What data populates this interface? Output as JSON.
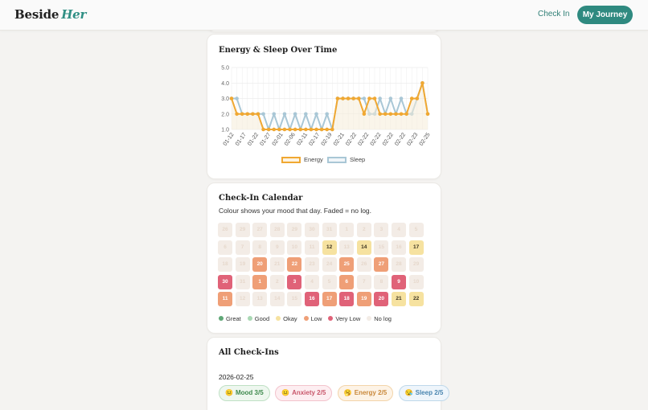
{
  "header": {
    "logo_main": "Beside",
    "logo_accent": "Her",
    "nav_checkin": "Check In",
    "nav_journey": "My Journey"
  },
  "chart_card": {
    "title": "Energy & Sleep Over Time"
  },
  "chart_data": {
    "type": "line",
    "title": "Energy & Sleep Over Time",
    "xlabel": "",
    "ylabel": "",
    "ylim": [
      1.0,
      5.0
    ],
    "yticks": [
      "5.0",
      "4.0",
      "3.0",
      "2.0",
      "1.0"
    ],
    "xticks": [
      "01-12",
      "01-17",
      "01-22",
      "01-27",
      "02-01",
      "02-06",
      "02-11",
      "02-17",
      "02-19",
      "02-21",
      "02-22",
      "02-22",
      "02-22",
      "02-22",
      "02-22",
      "02-23",
      "02-25"
    ],
    "grid": true,
    "legend_position": "bottom",
    "series": [
      {
        "name": "Energy",
        "color": "#f0a832",
        "values": [
          3,
          2,
          2,
          2,
          2,
          2,
          1,
          1,
          1,
          1,
          1,
          1,
          1,
          1,
          1,
          1,
          1,
          1,
          1,
          1,
          3,
          3,
          3,
          3,
          3,
          2,
          3,
          3,
          2,
          2,
          2,
          2,
          2,
          2,
          3,
          3,
          4,
          2
        ]
      },
      {
        "name": "Sleep",
        "color": "#a9c7d6",
        "values": [
          3,
          3,
          2,
          2,
          2,
          2,
          2,
          1,
          2,
          1,
          2,
          1,
          2,
          1,
          2,
          1,
          2,
          1,
          2,
          1,
          3,
          3,
          3,
          3,
          3,
          3,
          2,
          2,
          3,
          2,
          3,
          2,
          3,
          2,
          2,
          3,
          4,
          2
        ]
      }
    ]
  },
  "calendar_card": {
    "title": "Check-In Calendar",
    "subtitle": "Colour shows your mood that day. Faded = no log.",
    "colors": {
      "great": "#5fa777",
      "good": "#a9d8b4",
      "okay": "#f6e2a0",
      "low": "#ef9f77",
      "very_low": "#e06278",
      "no_log": "#f3ece6"
    },
    "rows": [
      [
        {
          "d": "26",
          "m": "none",
          "f": 1
        },
        {
          "d": "29",
          "m": "none",
          "f": 1
        },
        {
          "d": "27",
          "m": "none",
          "f": 1
        },
        {
          "d": "28",
          "m": "none",
          "f": 1
        },
        {
          "d": "29",
          "m": "none",
          "f": 1
        },
        {
          "d": "30",
          "m": "none",
          "f": 1
        },
        {
          "d": "31",
          "m": "none",
          "f": 1
        },
        {
          "d": "1",
          "m": "none",
          "f": 1
        },
        {
          "d": "2",
          "m": "none",
          "f": 1
        },
        {
          "d": "3",
          "m": "none",
          "f": 1
        },
        {
          "d": "4",
          "m": "none",
          "f": 1
        },
        {
          "d": "5",
          "m": "none",
          "f": 1
        }
      ],
      [
        {
          "d": "6",
          "m": "none",
          "f": 1
        },
        {
          "d": "7",
          "m": "none",
          "f": 1
        },
        {
          "d": "8",
          "m": "none",
          "f": 1
        },
        {
          "d": "9",
          "m": "none",
          "f": 1
        },
        {
          "d": "10",
          "m": "none",
          "f": 1
        },
        {
          "d": "11",
          "m": "none",
          "f": 1
        },
        {
          "d": "12",
          "m": "okay",
          "f": 0
        },
        {
          "d": "13",
          "m": "none",
          "f": 1
        },
        {
          "d": "14",
          "m": "okay",
          "f": 0
        },
        {
          "d": "15",
          "m": "none",
          "f": 1
        },
        {
          "d": "16",
          "m": "none",
          "f": 1
        },
        {
          "d": "17",
          "m": "okay",
          "f": 0
        }
      ],
      [
        {
          "d": "18",
          "m": "none",
          "f": 1
        },
        {
          "d": "19",
          "m": "none",
          "f": 1
        },
        {
          "d": "20",
          "m": "low",
          "f": 0
        },
        {
          "d": "21",
          "m": "none",
          "f": 1
        },
        {
          "d": "22",
          "m": "low",
          "f": 0
        },
        {
          "d": "23",
          "m": "none",
          "f": 1
        },
        {
          "d": "24",
          "m": "none",
          "f": 1
        },
        {
          "d": "25",
          "m": "low",
          "f": 0
        },
        {
          "d": "26",
          "m": "none",
          "f": 1
        },
        {
          "d": "27",
          "m": "low",
          "f": 0
        },
        {
          "d": "28",
          "m": "none",
          "f": 1
        },
        {
          "d": "29",
          "m": "none",
          "f": 1
        }
      ],
      [
        {
          "d": "30",
          "m": "very_low",
          "f": 0
        },
        {
          "d": "31",
          "m": "none",
          "f": 1
        },
        {
          "d": "1",
          "m": "low",
          "f": 0
        },
        {
          "d": "2",
          "m": "none",
          "f": 1
        },
        {
          "d": "3",
          "m": "very_low",
          "f": 0
        },
        {
          "d": "4",
          "m": "none",
          "f": 1
        },
        {
          "d": "5",
          "m": "none",
          "f": 1
        },
        {
          "d": "6",
          "m": "low",
          "f": 0
        },
        {
          "d": "7",
          "m": "none",
          "f": 1
        },
        {
          "d": "8",
          "m": "none",
          "f": 1
        },
        {
          "d": "9",
          "m": "very_low",
          "f": 0
        },
        {
          "d": "10",
          "m": "none",
          "f": 1
        }
      ],
      [
        {
          "d": "11",
          "m": "low",
          "f": 0
        },
        {
          "d": "12",
          "m": "none",
          "f": 1
        },
        {
          "d": "13",
          "m": "none",
          "f": 1
        },
        {
          "d": "14",
          "m": "none",
          "f": 1
        },
        {
          "d": "15",
          "m": "none",
          "f": 1
        },
        {
          "d": "16",
          "m": "very_low",
          "f": 0
        },
        {
          "d": "17",
          "m": "low",
          "f": 0
        },
        {
          "d": "18",
          "m": "very_low",
          "f": 0
        },
        {
          "d": "19",
          "m": "low",
          "f": 0
        },
        {
          "d": "20",
          "m": "very_low",
          "f": 0
        },
        {
          "d": "21",
          "m": "okay",
          "f": 0
        },
        {
          "d": "22",
          "m": "okay",
          "f": 0
        }
      ]
    ],
    "legend": [
      {
        "key": "great",
        "label": "Great"
      },
      {
        "key": "good",
        "label": "Good"
      },
      {
        "key": "okay",
        "label": "Okay"
      },
      {
        "key": "low",
        "label": "Low"
      },
      {
        "key": "very_low",
        "label": "Very Low"
      },
      {
        "key": "no_log",
        "label": "No log"
      }
    ]
  },
  "checkins_card": {
    "title": "All Check-Ins",
    "entries": [
      {
        "date": "2026-02-25",
        "mood": "Mood 3/5",
        "anxiety": "Anxiety 2/5",
        "energy": "Energy 2/5",
        "sleep": "Sleep 2/5"
      }
    ]
  }
}
